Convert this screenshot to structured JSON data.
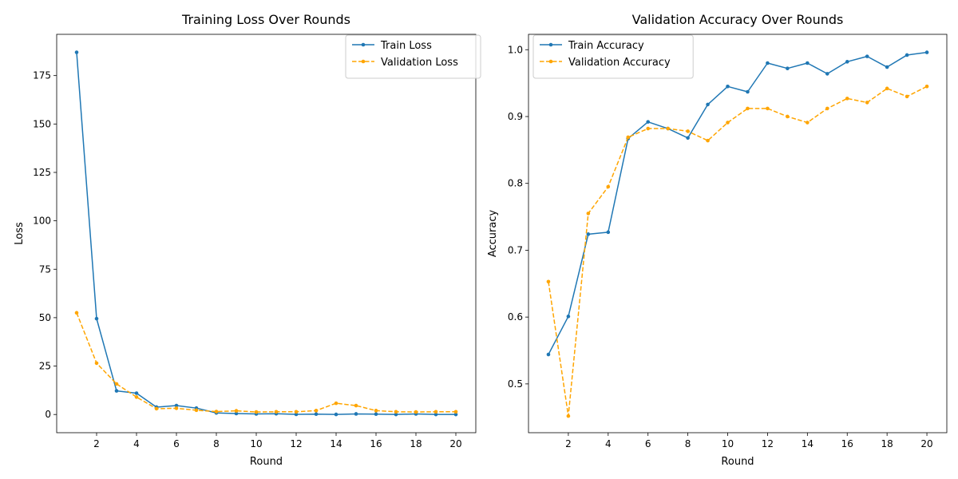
{
  "chart_data": [
    {
      "type": "line",
      "title": "Training Loss Over Rounds",
      "xlabel": "Round",
      "ylabel": "Loss",
      "xlim": [
        0,
        21
      ],
      "ylim": [
        -9.4,
        196.3
      ],
      "xticks": [
        2,
        4,
        6,
        8,
        10,
        12,
        14,
        16,
        18,
        20
      ],
      "yticks": [
        0,
        25,
        50,
        75,
        100,
        125,
        150,
        175
      ],
      "legend_position": "top-right",
      "grid": false,
      "x": [
        1,
        2,
        3,
        4,
        5,
        6,
        7,
        8,
        9,
        10,
        11,
        12,
        13,
        14,
        15,
        16,
        17,
        18,
        19,
        20
      ],
      "series": [
        {
          "name": "Train Loss",
          "color": "#1f77b4",
          "linestyle": "solid",
          "values": [
            187.0,
            49.5,
            12.2,
            11.0,
            3.8,
            4.6,
            3.3,
            0.8,
            0.5,
            0.3,
            0.4,
            0.1,
            0.2,
            0.05,
            0.3,
            0.2,
            0.02,
            0.3,
            0.01,
            0.01
          ]
        },
        {
          "name": "Validation Loss",
          "color": "#ffa500",
          "linestyle": "dashed",
          "values": [
            52.5,
            26.5,
            15.8,
            9.0,
            3.0,
            3.2,
            2.2,
            1.5,
            1.9,
            1.3,
            1.4,
            1.4,
            2.0,
            5.8,
            4.6,
            2.0,
            1.4,
            1.3,
            1.4,
            1.4
          ]
        }
      ]
    },
    {
      "type": "line",
      "title": "Validation Accuracy Over Rounds",
      "xlabel": "Round",
      "ylabel": "Accuracy",
      "xlim": [
        0,
        21
      ],
      "ylim": [
        0.427,
        1.023
      ],
      "xticks": [
        2,
        4,
        6,
        8,
        10,
        12,
        14,
        16,
        18,
        20
      ],
      "yticks": [
        0.5,
        0.6,
        0.7,
        0.8,
        0.9,
        1.0
      ],
      "legend_position": "top-left",
      "grid": false,
      "x": [
        1,
        2,
        3,
        4,
        5,
        6,
        7,
        8,
        9,
        10,
        11,
        12,
        13,
        14,
        15,
        16,
        17,
        18,
        19,
        20
      ],
      "series": [
        {
          "name": "Train Accuracy",
          "color": "#1f77b4",
          "linestyle": "solid",
          "values": [
            0.544,
            0.601,
            0.724,
            0.727,
            0.867,
            0.892,
            0.882,
            0.868,
            0.918,
            0.945,
            0.937,
            0.98,
            0.972,
            0.98,
            0.964,
            0.982,
            0.99,
            0.974,
            0.992,
            0.996
          ]
        },
        {
          "name": "Validation Accuracy",
          "color": "#ffa500",
          "linestyle": "dashed",
          "values": [
            0.653,
            0.452,
            0.755,
            0.795,
            0.869,
            0.882,
            0.882,
            0.878,
            0.864,
            0.891,
            0.912,
            0.912,
            0.9,
            0.891,
            0.912,
            0.927,
            0.921,
            0.942,
            0.93,
            0.945
          ]
        }
      ]
    }
  ]
}
